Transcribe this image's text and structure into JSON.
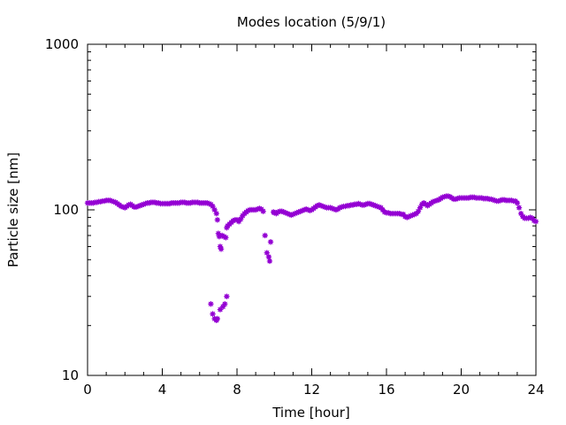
{
  "chart_data": {
    "type": "scatter",
    "title": "Modes location (5/9/1)",
    "xlabel": "Time [hour]",
    "ylabel": "Particle size [nm]",
    "xlim": [
      0,
      24
    ],
    "ylim": [
      10,
      1000
    ],
    "yscale": "log",
    "x_ticks": [
      0,
      4,
      8,
      12,
      16,
      20,
      24
    ],
    "y_ticks": [
      10,
      100,
      1000
    ],
    "grid": false,
    "marker_color": "#9400d3",
    "series": [
      {
        "points": [
          [
            0.0,
            110
          ],
          [
            0.1,
            110
          ],
          [
            0.2,
            110
          ],
          [
            0.3,
            110
          ],
          [
            0.4,
            111
          ],
          [
            0.5,
            111
          ],
          [
            0.6,
            112
          ],
          [
            0.7,
            112
          ],
          [
            0.8,
            113
          ],
          [
            0.9,
            113
          ],
          [
            1.0,
            114
          ],
          [
            1.1,
            114
          ],
          [
            1.2,
            114
          ],
          [
            1.3,
            113
          ],
          [
            1.4,
            112
          ],
          [
            1.5,
            111
          ],
          [
            1.6,
            109
          ],
          [
            1.7,
            107
          ],
          [
            1.8,
            105
          ],
          [
            1.9,
            104
          ],
          [
            2.0,
            103
          ],
          [
            2.1,
            105
          ],
          [
            2.2,
            107
          ],
          [
            2.3,
            108
          ],
          [
            2.4,
            106
          ],
          [
            2.5,
            104
          ],
          [
            2.6,
            104
          ],
          [
            2.7,
            105
          ],
          [
            2.8,
            106
          ],
          [
            2.9,
            107
          ],
          [
            3.0,
            108
          ],
          [
            3.1,
            109
          ],
          [
            3.2,
            110
          ],
          [
            3.3,
            110
          ],
          [
            3.4,
            111
          ],
          [
            3.5,
            111
          ],
          [
            3.6,
            111
          ],
          [
            3.7,
            110
          ],
          [
            3.8,
            110
          ],
          [
            3.9,
            109
          ],
          [
            4.0,
            109
          ],
          [
            4.1,
            109
          ],
          [
            4.2,
            109
          ],
          [
            4.3,
            109
          ],
          [
            4.4,
            109
          ],
          [
            4.5,
            110
          ],
          [
            4.6,
            110
          ],
          [
            4.7,
            110
          ],
          [
            4.8,
            110
          ],
          [
            4.9,
            110
          ],
          [
            5.0,
            111
          ],
          [
            5.1,
            111
          ],
          [
            5.2,
            111
          ],
          [
            5.3,
            110
          ],
          [
            5.4,
            110
          ],
          [
            5.5,
            110
          ],
          [
            5.6,
            111
          ],
          [
            5.7,
            111
          ],
          [
            5.8,
            111
          ],
          [
            5.9,
            111
          ],
          [
            6.0,
            110
          ],
          [
            6.1,
            110
          ],
          [
            6.2,
            110
          ],
          [
            6.3,
            110
          ],
          [
            6.4,
            110
          ],
          [
            6.5,
            109
          ],
          [
            6.6,
            108
          ],
          [
            6.7,
            105
          ],
          [
            6.8,
            100
          ],
          [
            6.9,
            95
          ],
          [
            6.95,
            87
          ],
          [
            6.6,
            27
          ],
          [
            6.7,
            23.5
          ],
          [
            6.8,
            22
          ],
          [
            6.9,
            21.5
          ],
          [
            6.95,
            22
          ],
          [
            7.0,
            72
          ],
          [
            7.05,
            69
          ],
          [
            7.1,
            60
          ],
          [
            7.15,
            58
          ],
          [
            7.2,
            70
          ],
          [
            7.3,
            69
          ],
          [
            7.4,
            68
          ],
          [
            7.1,
            25
          ],
          [
            7.25,
            26
          ],
          [
            7.35,
            27
          ],
          [
            7.45,
            30
          ],
          [
            7.45,
            78
          ],
          [
            7.5,
            80
          ],
          [
            7.6,
            82
          ],
          [
            7.7,
            84
          ],
          [
            7.8,
            86
          ],
          [
            7.9,
            87
          ],
          [
            8.0,
            87
          ],
          [
            8.1,
            85
          ],
          [
            8.2,
            88
          ],
          [
            8.3,
            92
          ],
          [
            8.4,
            95
          ],
          [
            8.5,
            97
          ],
          [
            8.6,
            99
          ],
          [
            8.7,
            100
          ],
          [
            8.8,
            100
          ],
          [
            8.9,
            100
          ],
          [
            9.0,
            100
          ],
          [
            9.1,
            101
          ],
          [
            9.2,
            102
          ],
          [
            9.3,
            101
          ],
          [
            9.4,
            98
          ],
          [
            9.5,
            70
          ],
          [
            9.6,
            55
          ],
          [
            9.7,
            52
          ],
          [
            9.75,
            49
          ],
          [
            9.8,
            64
          ],
          [
            9.95,
            97
          ],
          [
            10.0,
            96
          ],
          [
            10.1,
            95
          ],
          [
            10.2,
            97
          ],
          [
            10.3,
            98
          ],
          [
            10.4,
            98
          ],
          [
            10.5,
            97
          ],
          [
            10.6,
            96
          ],
          [
            10.7,
            95
          ],
          [
            10.8,
            94
          ],
          [
            10.9,
            93
          ],
          [
            11.0,
            94
          ],
          [
            11.1,
            95
          ],
          [
            11.2,
            96
          ],
          [
            11.3,
            97
          ],
          [
            11.4,
            98
          ],
          [
            11.5,
            99
          ],
          [
            11.6,
            100
          ],
          [
            11.7,
            101
          ],
          [
            11.8,
            100
          ],
          [
            11.9,
            99
          ],
          [
            12.0,
            100
          ],
          [
            12.1,
            102
          ],
          [
            12.2,
            104
          ],
          [
            12.3,
            106
          ],
          [
            12.4,
            107
          ],
          [
            12.5,
            106
          ],
          [
            12.6,
            105
          ],
          [
            12.7,
            104
          ],
          [
            12.8,
            103
          ],
          [
            12.9,
            103
          ],
          [
            13.0,
            103
          ],
          [
            13.1,
            102
          ],
          [
            13.2,
            101
          ],
          [
            13.3,
            100
          ],
          [
            13.4,
            101
          ],
          [
            13.5,
            103
          ],
          [
            13.6,
            104
          ],
          [
            13.7,
            105
          ],
          [
            13.8,
            105
          ],
          [
            13.9,
            106
          ],
          [
            14.0,
            106
          ],
          [
            14.1,
            107
          ],
          [
            14.2,
            107
          ],
          [
            14.3,
            108
          ],
          [
            14.4,
            108
          ],
          [
            14.5,
            109
          ],
          [
            14.6,
            108
          ],
          [
            14.7,
            107
          ],
          [
            14.8,
            107
          ],
          [
            14.9,
            108
          ],
          [
            15.0,
            109
          ],
          [
            15.1,
            109
          ],
          [
            15.2,
            108
          ],
          [
            15.3,
            107
          ],
          [
            15.4,
            106
          ],
          [
            15.5,
            105
          ],
          [
            15.6,
            104
          ],
          [
            15.7,
            103
          ],
          [
            15.8,
            100
          ],
          [
            15.9,
            97
          ],
          [
            16.0,
            96
          ],
          [
            16.1,
            96
          ],
          [
            16.2,
            95
          ],
          [
            16.3,
            95
          ],
          [
            16.4,
            95
          ],
          [
            16.5,
            95
          ],
          [
            16.6,
            95
          ],
          [
            16.7,
            95
          ],
          [
            16.8,
            94
          ],
          [
            16.9,
            94
          ],
          [
            17.0,
            91
          ],
          [
            17.1,
            90
          ],
          [
            17.2,
            91
          ],
          [
            17.3,
            92
          ],
          [
            17.4,
            93
          ],
          [
            17.5,
            94
          ],
          [
            17.6,
            95
          ],
          [
            17.7,
            98
          ],
          [
            17.8,
            103
          ],
          [
            17.9,
            108
          ],
          [
            18.0,
            110
          ],
          [
            18.1,
            108
          ],
          [
            18.2,
            106
          ],
          [
            18.3,
            108
          ],
          [
            18.4,
            110
          ],
          [
            18.5,
            112
          ],
          [
            18.6,
            113
          ],
          [
            18.7,
            114
          ],
          [
            18.8,
            115
          ],
          [
            18.9,
            117
          ],
          [
            19.0,
            119
          ],
          [
            19.1,
            120
          ],
          [
            19.2,
            121
          ],
          [
            19.3,
            121
          ],
          [
            19.4,
            120
          ],
          [
            19.5,
            118
          ],
          [
            19.6,
            116
          ],
          [
            19.7,
            116
          ],
          [
            19.8,
            117
          ],
          [
            19.9,
            118
          ],
          [
            20.0,
            118
          ],
          [
            20.1,
            118
          ],
          [
            20.2,
            118
          ],
          [
            20.3,
            118
          ],
          [
            20.4,
            118
          ],
          [
            20.5,
            119
          ],
          [
            20.6,
            119
          ],
          [
            20.7,
            119
          ],
          [
            20.8,
            118
          ],
          [
            20.9,
            118
          ],
          [
            21.0,
            118
          ],
          [
            21.1,
            118
          ],
          [
            21.2,
            117
          ],
          [
            21.3,
            117
          ],
          [
            21.4,
            117
          ],
          [
            21.5,
            116
          ],
          [
            21.6,
            116
          ],
          [
            21.7,
            115
          ],
          [
            21.8,
            114
          ],
          [
            21.9,
            113
          ],
          [
            22.0,
            113
          ],
          [
            22.1,
            114
          ],
          [
            22.2,
            115
          ],
          [
            22.3,
            115
          ],
          [
            22.4,
            114
          ],
          [
            22.5,
            114
          ],
          [
            22.6,
            114
          ],
          [
            22.7,
            114
          ],
          [
            22.8,
            113
          ],
          [
            22.9,
            113
          ],
          [
            23.0,
            110
          ],
          [
            23.1,
            103
          ],
          [
            23.2,
            95
          ],
          [
            23.3,
            91
          ],
          [
            23.4,
            89
          ],
          [
            23.5,
            89
          ],
          [
            23.6,
            89
          ],
          [
            23.7,
            90
          ],
          [
            23.8,
            89
          ],
          [
            23.9,
            86
          ],
          [
            24.0,
            85
          ]
        ]
      }
    ]
  }
}
